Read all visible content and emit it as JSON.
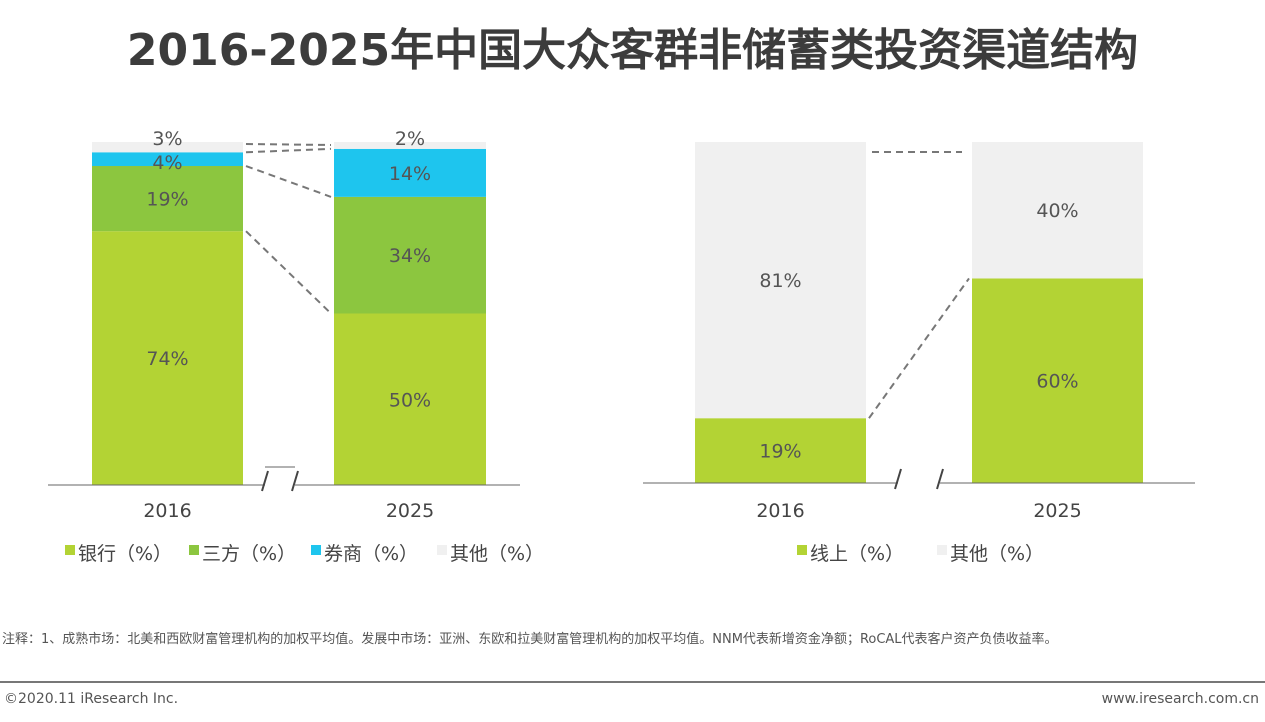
{
  "title": "2016-2025年中国大众客群非储蓄类投资渠道结构",
  "chart_data": [
    {
      "type": "bar",
      "stacked": true,
      "categories": [
        "2016",
        "2025"
      ],
      "ylim": [
        0,
        100
      ],
      "series": [
        {
          "name": "银行（%）",
          "color": "#b3d334",
          "values": [
            74,
            50
          ]
        },
        {
          "name": "三方（%）",
          "color": "#8cc63f",
          "values": [
            19,
            34
          ]
        },
        {
          "name": "券商（%）",
          "color": "#1ec5ee",
          "values": [
            4,
            14
          ]
        },
        {
          "name": "其他（%）",
          "color": "#f0f0f0",
          "values": [
            3,
            2
          ]
        }
      ],
      "legend": "bottom",
      "grid": false
    },
    {
      "type": "bar",
      "stacked": true,
      "categories": [
        "2016",
        "2025"
      ],
      "ylim": [
        0,
        100
      ],
      "series": [
        {
          "name": "线上（%）",
          "color": "#b3d334",
          "values": [
            19,
            60
          ]
        },
        {
          "name": "其他（%）",
          "color": "#f0f0f0",
          "values": [
            81,
            40
          ]
        }
      ],
      "legend": "bottom",
      "grid": false
    }
  ],
  "footer": {
    "note": "注释：1、成熟市场：北美和西欧财富管理机构的加权平均值。发展中市场：亚洲、东欧和拉美财富管理机构的加权平均值。NNM代表新增资金净额；RoCAL代表客户资产负债收益率。",
    "copyright": "©2020.11 iResearch Inc.",
    "website": "www.iresearch.com.cn"
  }
}
